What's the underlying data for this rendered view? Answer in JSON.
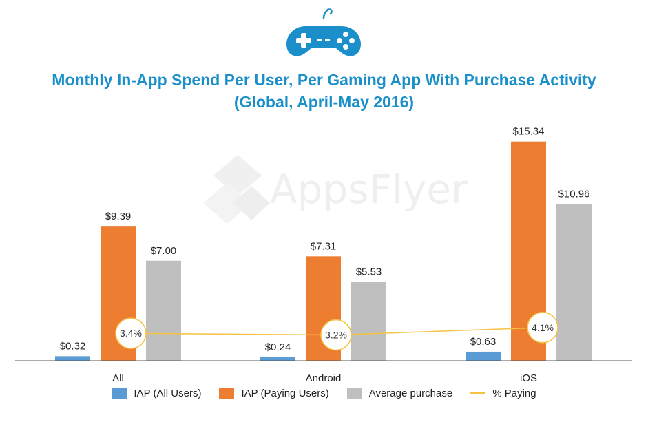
{
  "title_lines": [
    "Monthly In-App Spend Per User, Per Gaming App With Purchase Activity",
    "(Global, April-May 2016)"
  ],
  "watermark": "AppsFlyer",
  "colors": {
    "title": "#1a8fc9",
    "iap_all": "#5b9bd5",
    "iap_paying": "#ed7d31",
    "avg_purchase": "#bfbfbf",
    "pct_paying": "#f5c242"
  },
  "icon": "gamepad-icon",
  "chart_data": {
    "type": "bar",
    "title": "Monthly In-App Spend Per User, Per Gaming App With Purchase Activity (Global, April-May 2016)",
    "categories": [
      "All",
      "Android",
      "iOS"
    ],
    "ylim": [
      0,
      16
    ],
    "grid": false,
    "legend_position": "bottom",
    "series": [
      {
        "name": "IAP (All Users)",
        "color": "#5b9bd5",
        "values": [
          0.32,
          0.24,
          0.63
        ],
        "labels": [
          "$0.32",
          "$0.24",
          "$0.63"
        ]
      },
      {
        "name": "IAP (Paying Users)",
        "color": "#ed7d31",
        "values": [
          9.39,
          7.31,
          15.34
        ],
        "labels": [
          "$9.39",
          "$7.31",
          "$15.34"
        ]
      },
      {
        "name": "Average purchase",
        "color": "#bfbfbf",
        "values": [
          7.0,
          5.53,
          10.96
        ],
        "labels": [
          "$7.00",
          "$5.53",
          "$10.96"
        ]
      }
    ],
    "line_series": {
      "name": "% Paying",
      "color": "#f5c242",
      "values": [
        3.4,
        3.2,
        4.1
      ],
      "labels": [
        "3.4%",
        "3.2%",
        "4.1%"
      ]
    }
  }
}
